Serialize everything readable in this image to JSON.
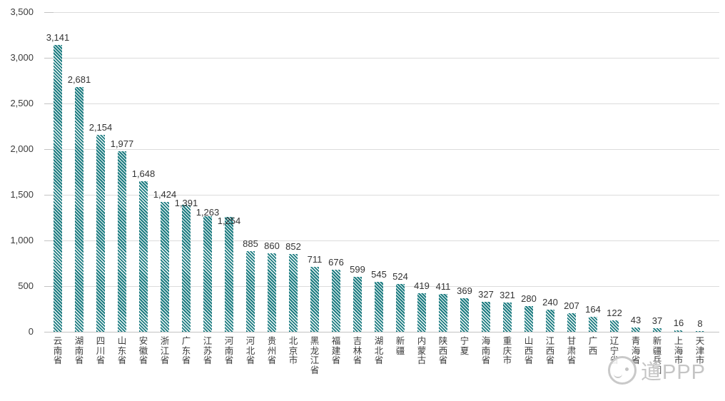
{
  "watermark": {
    "logo": "mascot-bird-logo",
    "text": "道PPP"
  },
  "chart_data": {
    "type": "bar",
    "title": "",
    "xlabel": "",
    "ylabel": "",
    "categories": [
      "云南省",
      "湖南省",
      "四川省",
      "山东省",
      "安徽省",
      "浙江省",
      "广东省",
      "江苏省",
      "河南省",
      "河北省",
      "贵州省",
      "北京市",
      "黑龙江省",
      "福建省",
      "吉林省",
      "湖北省",
      "新疆",
      "内蒙古",
      "陕西省",
      "宁夏",
      "海南省",
      "重庆市",
      "山西省",
      "江西省",
      "甘肃省",
      "广西",
      "辽宁省",
      "青海省",
      "新疆兵团",
      "上海市",
      "天津市"
    ],
    "values": [
      3141,
      2681,
      2154,
      1977,
      1648,
      1424,
      1391,
      1263,
      1254,
      885,
      860,
      852,
      711,
      676,
      599,
      545,
      524,
      419,
      411,
      369,
      327,
      321,
      280,
      240,
      207,
      164,
      122,
      43,
      37,
      16,
      8
    ],
    "ylim": [
      0,
      3500
    ],
    "ytick_step": 500,
    "grid": true,
    "legend": false,
    "data_labels": true,
    "number_format": "thousands-comma",
    "bar_pattern": "diagonal-stripes-backslash",
    "bar_color": "#1b7b80",
    "bar_stripe_color": "#f6fbfb",
    "gridline_color": "#dcdcdc",
    "axis_line_color": "#c3c3c3",
    "label_color": "#333333"
  }
}
